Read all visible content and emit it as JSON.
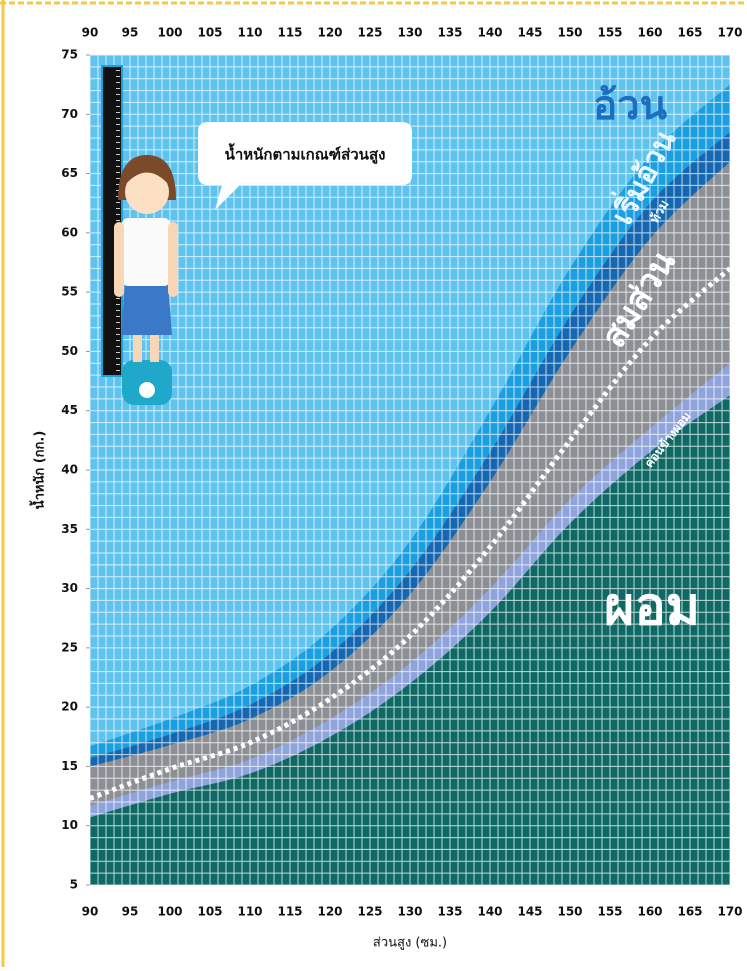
{
  "chart_data": {
    "type": "area",
    "plot_background": "#5ec3ef",
    "annotations": [
      {
        "text": "อ้วน",
        "color": "#1a6fc0"
      }
    ],
    "bubble_text": "น้ำหนักตามเกณฑ์ส่วนสูง",
    "x_label": "ส่วนสูง (ซม.)",
    "y_label": "น้ำหนัก (กก.)",
    "x": [
      90,
      100,
      110,
      120,
      130,
      140,
      150,
      160,
      170
    ],
    "series": [
      {
        "name": "เริ่มอ้วน",
        "color": "#1b9fe0",
        "values": [
          16.7,
          19,
          21.8,
          26.5,
          34,
          45,
          57,
          66.5,
          72.5
        ]
      },
      {
        "name": "ท้วม",
        "color": "#1667b2",
        "values": [
          15.7,
          17.7,
          20.2,
          24.5,
          31.5,
          41.5,
          53,
          62.5,
          68.5
        ]
      },
      {
        "name": "สมส่วน",
        "color": "#8c9095",
        "values": [
          15,
          16.8,
          19,
          23,
          29.5,
          39,
          50,
          59.5,
          66
        ]
      },
      {
        "name": "ค่อนข้างผอม",
        "color": "#8fa4dc",
        "values": [
          11.7,
          13.7,
          15.6,
          19,
          23.7,
          30,
          37.5,
          43.5,
          49
        ]
      },
      {
        "name": "ผอม",
        "color": "#0e6964",
        "values": [
          10.7,
          12.7,
          14.4,
          17.5,
          22,
          28,
          35.5,
          41.5,
          46.3
        ]
      },
      {
        "color": "#ffffff",
        "style": "dotted",
        "values": [
          12.3,
          14.8,
          17,
          20.7,
          26,
          33.5,
          42.5,
          51,
          57
        ]
      }
    ],
    "xlim": [
      90,
      170
    ],
    "ylim": [
      5,
      75
    ],
    "xticks": [
      90,
      95,
      100,
      105,
      110,
      115,
      120,
      125,
      130,
      135,
      140,
      145,
      150,
      155,
      160,
      165,
      170
    ],
    "yticks": [
      5,
      10,
      15,
      20,
      25,
      30,
      35,
      40,
      45,
      50,
      55,
      60,
      65,
      70,
      75
    ],
    "minor_grid": 1,
    "grid": true
  }
}
